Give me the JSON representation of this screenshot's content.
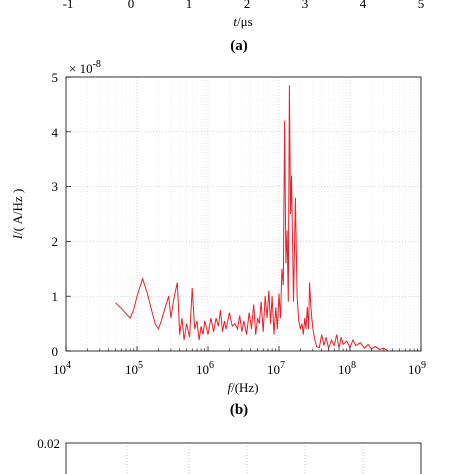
{
  "top_panel": {
    "x_ticks": [
      "-1",
      "0",
      "1",
      "2",
      "3",
      "4",
      "5"
    ],
    "xlabel_var": "t",
    "xlabel_unit": "/μs",
    "caption": "(a)"
  },
  "bottom_panel": {
    "y_ticks": [
      "0.02"
    ]
  },
  "chart_data": {
    "type": "line",
    "caption": "(b)",
    "xlabel_var": "f",
    "xlabel_unit": "/(Hz)",
    "ylabel_var": "I",
    "ylabel_unit": "/( A/Hz )",
    "y_multiplier_base": "× 10",
    "y_multiplier_exp": "-8",
    "x_scale": "log",
    "xlim": [
      10000,
      1000000000
    ],
    "ylim": [
      0,
      5
    ],
    "x_ticks": [
      {
        "value": 10000,
        "base": "10",
        "exp": "4"
      },
      {
        "value": 100000,
        "base": "10",
        "exp": "5"
      },
      {
        "value": 1000000,
        "base": "10",
        "exp": "6"
      },
      {
        "value": 10000000,
        "base": "10",
        "exp": "7"
      },
      {
        "value": 100000000,
        "base": "10",
        "exp": "8"
      },
      {
        "value": 1000000000,
        "base": "10",
        "exp": "9"
      }
    ],
    "y_ticks": [
      "0",
      "1",
      "2",
      "3",
      "4",
      "5"
    ],
    "grid": true,
    "line_color": "#e8202a",
    "series": [
      {
        "points": [
          [
            50000,
            0.88
          ],
          [
            60000,
            0.78
          ],
          [
            70000,
            0.68
          ],
          [
            80000,
            0.6
          ],
          [
            90000,
            0.76
          ],
          [
            100000,
            1.0
          ],
          [
            120000,
            1.32
          ],
          [
            140000,
            1.05
          ],
          [
            160000,
            0.75
          ],
          [
            180000,
            0.5
          ],
          [
            200000,
            0.4
          ],
          [
            220000,
            0.55
          ],
          [
            250000,
            0.8
          ],
          [
            280000,
            1.0
          ],
          [
            300000,
            0.6
          ],
          [
            330000,
            0.95
          ],
          [
            370000,
            1.25
          ],
          [
            400000,
            0.3
          ],
          [
            430000,
            0.6
          ],
          [
            460000,
            0.2
          ],
          [
            500000,
            0.5
          ],
          [
            550000,
            0.25
          ],
          [
            600000,
            1.15
          ],
          [
            650000,
            0.4
          ],
          [
            700000,
            0.55
          ],
          [
            750000,
            0.2
          ],
          [
            800000,
            0.45
          ],
          [
            850000,
            0.3
          ],
          [
            900000,
            0.55
          ],
          [
            1000000,
            0.3
          ],
          [
            1100000,
            0.6
          ],
          [
            1200000,
            0.35
          ],
          [
            1300000,
            0.6
          ],
          [
            1400000,
            0.45
          ],
          [
            1500000,
            0.75
          ],
          [
            1600000,
            0.35
          ],
          [
            1700000,
            0.55
          ],
          [
            1800000,
            0.4
          ],
          [
            2000000,
            0.7
          ],
          [
            2200000,
            0.45
          ],
          [
            2400000,
            0.5
          ],
          [
            2600000,
            0.4
          ],
          [
            2800000,
            0.65
          ],
          [
            3000000,
            0.35
          ],
          [
            3200000,
            0.55
          ],
          [
            3500000,
            0.3
          ],
          [
            3800000,
            0.7
          ],
          [
            4100000,
            0.4
          ],
          [
            4400000,
            0.85
          ],
          [
            4700000,
            0.3
          ],
          [
            5000000,
            0.6
          ],
          [
            5300000,
            0.5
          ],
          [
            5600000,
            0.9
          ],
          [
            6000000,
            0.35
          ],
          [
            6400000,
            1.0
          ],
          [
            6800000,
            0.6
          ],
          [
            7200000,
            1.1
          ],
          [
            7600000,
            0.5
          ],
          [
            8000000,
            1.0
          ],
          [
            8500000,
            0.3
          ],
          [
            9000000,
            0.8
          ],
          [
            9500000,
            0.4
          ],
          [
            10000000,
            1.05
          ],
          [
            10500000,
            0.6
          ],
          [
            11000000,
            1.5
          ],
          [
            11500000,
            1.2
          ],
          [
            12000000,
            4.2
          ],
          [
            12500000,
            1.6
          ],
          [
            13000000,
            2.2
          ],
          [
            13500000,
            0.9
          ],
          [
            14000000,
            4.85
          ],
          [
            14500000,
            2.5
          ],
          [
            15000000,
            3.2
          ],
          [
            16000000,
            0.9
          ],
          [
            17000000,
            2.8
          ],
          [
            18000000,
            1.0
          ],
          [
            19000000,
            0.55
          ],
          [
            20000000,
            0.4
          ],
          [
            21000000,
            0.5
          ],
          [
            22000000,
            0.3
          ],
          [
            23000000,
            0.6
          ],
          [
            24000000,
            0.4
          ],
          [
            25000000,
            0.8
          ],
          [
            26000000,
            0.4
          ],
          [
            27000000,
            1.25
          ],
          [
            28000000,
            0.85
          ],
          [
            29000000,
            0.6
          ],
          [
            30000000,
            0.4
          ],
          [
            32000000,
            0.2
          ],
          [
            34000000,
            0.08
          ],
          [
            37000000,
            0.06
          ],
          [
            40000000,
            0.3
          ],
          [
            43000000,
            0.1
          ],
          [
            46000000,
            0.25
          ],
          [
            50000000,
            0.05
          ],
          [
            55000000,
            0.2
          ],
          [
            60000000,
            0.1
          ],
          [
            65000000,
            0.3
          ],
          [
            70000000,
            0.05
          ],
          [
            75000000,
            0.25
          ],
          [
            80000000,
            0.12
          ],
          [
            90000000,
            0.18
          ],
          [
            100000000,
            0.06
          ],
          [
            110000000,
            0.2
          ],
          [
            120000000,
            0.1
          ],
          [
            140000000,
            0.15
          ],
          [
            160000000,
            0.05
          ],
          [
            180000000,
            0.12
          ],
          [
            200000000,
            0.04
          ],
          [
            230000000,
            0.08
          ],
          [
            260000000,
            0.03
          ],
          [
            300000000,
            0.05
          ],
          [
            340000000,
            0.01
          ]
        ]
      }
    ]
  }
}
